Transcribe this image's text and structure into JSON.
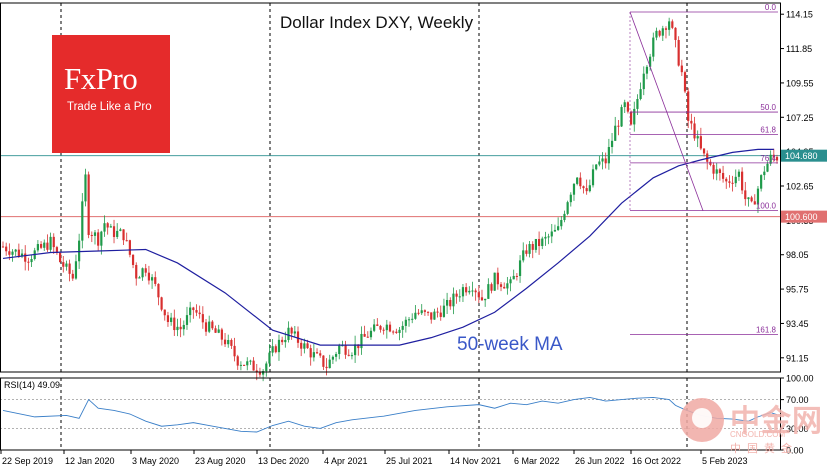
{
  "chart_data": [
    {
      "type": "candlestick",
      "title": "Dollar Index DXY, Weekly",
      "ylim": [
        90.2,
        114.9
      ],
      "y_ticks": [
        "114.15",
        "111.85",
        "109.55",
        "107.25",
        "104.95",
        "102.65",
        "100.35",
        "98.05",
        "95.75",
        "93.45",
        "91.15"
      ],
      "x_ticks": [
        "22 Sep 2019",
        "12 Jan 2020",
        "3 May 2020",
        "23 Aug 2020",
        "13 Dec 2020",
        "4 Apr 2021",
        "25 Jul 2021",
        "14 Nov 2021",
        "6 Mar 2022",
        "26 Jun 2022",
        "16 Oct 2022",
        "5 Feb 2023"
      ],
      "price_path": [
        [
          0,
          98.6
        ],
        [
          8,
          97.9
        ],
        [
          15,
          98.9
        ],
        [
          18,
          97.6
        ],
        [
          22,
          96.5
        ],
        [
          24,
          99.2
        ],
        [
          26,
          103.2
        ],
        [
          27,
          99.8
        ],
        [
          30,
          99.1
        ],
        [
          32,
          100.2
        ],
        [
          34,
          99.6
        ],
        [
          38,
          99.4
        ],
        [
          42,
          96.7
        ],
        [
          45,
          97.2
        ],
        [
          48,
          95.9
        ],
        [
          52,
          93.6
        ],
        [
          56,
          93.1
        ],
        [
          60,
          94.4
        ],
        [
          64,
          93.3
        ],
        [
          70,
          92.3
        ],
        [
          74,
          91.0
        ],
        [
          78,
          90.6
        ],
        [
          82,
          90.4
        ],
        [
          86,
          91.9
        ],
        [
          90,
          92.9
        ],
        [
          94,
          92.1
        ],
        [
          98,
          91.3
        ],
        [
          102,
          90.6
        ],
        [
          106,
          91.9
        ],
        [
          110,
          91.7
        ],
        [
          115,
          92.7
        ],
        [
          120,
          93.4
        ],
        [
          125,
          93.1
        ],
        [
          130,
          94.2
        ],
        [
          135,
          93.9
        ],
        [
          140,
          94.6
        ],
        [
          145,
          95.8
        ],
        [
          148,
          96.1
        ],
        [
          151,
          95.1
        ],
        [
          155,
          96.4
        ],
        [
          160,
          96.0
        ],
        [
          165,
          98.4
        ],
        [
          170,
          98.9
        ],
        [
          175,
          99.7
        ],
        [
          178,
          101.8
        ],
        [
          181,
          103.5
        ],
        [
          184,
          102.0
        ],
        [
          187,
          104.1
        ],
        [
          190,
          104.3
        ],
        [
          193,
          106.5
        ],
        [
          196,
          108.0
        ],
        [
          198,
          106.5
        ],
        [
          202,
          110.5
        ],
        [
          206,
          112.8
        ],
        [
          210,
          113.8
        ],
        [
          212,
          112.0
        ],
        [
          214,
          110.2
        ],
        [
          216,
          107.0
        ],
        [
          218,
          106.2
        ],
        [
          220,
          105.0
        ],
        [
          222,
          104.2
        ],
        [
          224,
          103.8
        ],
        [
          228,
          102.9
        ],
        [
          232,
          103.5
        ],
        [
          234,
          101.8
        ],
        [
          236,
          101.2
        ],
        [
          238,
          102.5
        ],
        [
          240,
          103.8
        ],
        [
          242,
          104.5
        ],
        [
          244,
          104.6
        ]
      ],
      "series": [
        {
          "name": "50-week MA",
          "color": "#1f1fa0",
          "points": [
            [
              0,
              97.8
            ],
            [
              15,
              98.2
            ],
            [
              30,
              98.3
            ],
            [
              45,
              98.4
            ],
            [
              55,
              97.5
            ],
            [
              70,
              95.5
            ],
            [
              85,
              93.0
            ],
            [
              100,
              92.0
            ],
            [
              115,
              92.0
            ],
            [
              125,
              92.0
            ],
            [
              135,
              92.5
            ],
            [
              145,
              93.2
            ],
            [
              155,
              94.2
            ],
            [
              165,
              95.8
            ],
            [
              175,
              97.5
            ],
            [
              185,
              99.3
            ],
            [
              195,
              101.5
            ],
            [
              205,
              103.2
            ],
            [
              213,
              104.0
            ],
            [
              220,
              104.4
            ],
            [
              230,
              104.9
            ],
            [
              238,
              105.1
            ],
            [
              243,
              105.1
            ]
          ]
        }
      ],
      "annotations": {
        "ma_label": "50-week MA",
        "last_price": "104.680",
        "support_label": "100.600",
        "fib_levels": [
          {
            "label": "0.0",
            "value": 114.3
          },
          {
            "label": "50.0",
            "value": 107.6
          },
          {
            "label": "61.8",
            "value": 106.1
          },
          {
            "label": "76.4",
            "value": 104.2
          },
          {
            "label": "100.0",
            "value": 101.0
          },
          {
            "label": "161.8",
            "value": 92.7
          }
        ]
      },
      "colors": {
        "up": "#1f9a4a",
        "down": "#d82f2f",
        "ma": "#1f1fa0",
        "fib": "#8b2f9a",
        "last_price_line": "#2a8f8f",
        "support_line": "#e07070",
        "last_price_box": "#2a8f8f",
        "support_box": "#e07070"
      }
    },
    {
      "type": "line",
      "title": "RSI(14) 49.09",
      "ylim": [
        0,
        100
      ],
      "y_ticks": [
        "100.00",
        "70.00",
        "30.00",
        "0.00"
      ],
      "series": [
        {
          "name": "RSI(14)",
          "color": "#3a7fc8",
          "points": [
            [
              0,
              55
            ],
            [
              10,
              46
            ],
            [
              20,
              48
            ],
            [
              24,
              44
            ],
            [
              27,
              70
            ],
            [
              30,
              58
            ],
            [
              35,
              55
            ],
            [
              40,
              50
            ],
            [
              45,
              40
            ],
            [
              50,
              33
            ],
            [
              55,
              35
            ],
            [
              60,
              38
            ],
            [
              65,
              34
            ],
            [
              70,
              30
            ],
            [
              75,
              26
            ],
            [
              80,
              25
            ],
            [
              85,
              34
            ],
            [
              90,
              40
            ],
            [
              95,
              33
            ],
            [
              100,
              30
            ],
            [
              105,
              38
            ],
            [
              110,
              42
            ],
            [
              120,
              47
            ],
            [
              130,
              55
            ],
            [
              140,
              60
            ],
            [
              150,
              63
            ],
            [
              155,
              58
            ],
            [
              160,
              65
            ],
            [
              165,
              63
            ],
            [
              170,
              68
            ],
            [
              175,
              65
            ],
            [
              180,
              70
            ],
            [
              185,
              73
            ],
            [
              190,
              68
            ],
            [
              195,
              70
            ],
            [
              200,
              72
            ],
            [
              205,
              73
            ],
            [
              210,
              70
            ],
            [
              212,
              62
            ],
            [
              215,
              56
            ],
            [
              220,
              48
            ],
            [
              225,
              44
            ],
            [
              230,
              43
            ],
            [
              235,
              40
            ],
            [
              238,
              46
            ],
            [
              242,
              52
            ],
            [
              244,
              49
            ]
          ]
        }
      ]
    }
  ]
}
